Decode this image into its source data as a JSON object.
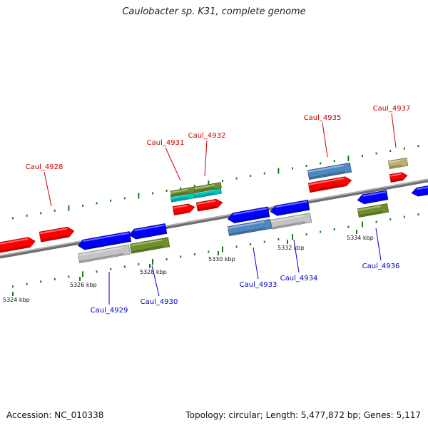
{
  "title": "Caulobacter sp. K31, complete genome",
  "footer": {
    "accession": "Accession: NC_010338",
    "summary": "Topology: circular; Length: 5,477,872 bp; Genes: 5,117"
  },
  "colors": {
    "backbone": "#8a8a8a",
    "forward_label": "#cc0000",
    "reverse_label": "#0000cc",
    "tick": "#1a7a1a",
    "cds_forward": "#ff0000",
    "cds_reverse": "#0000ff",
    "steelblue": "#4f87c0",
    "olive": "#6e8f2a",
    "cyan": "#00c8c8",
    "gray": "#c4c4c4",
    "khaki": "#c0b070"
  },
  "ticks": [
    "5324 kbp",
    "5326 kbp",
    "5328 kbp",
    "5330 kbp",
    "5332 kbp",
    "5334 kbp"
  ],
  "genes": [
    "Caul_4928",
    "Caul_4929",
    "Caul_4930",
    "Caul_4931",
    "Caul_4932",
    "Caul_4933",
    "Caul_4934",
    "Caul_4935",
    "Caul_4936",
    "Caul_4937"
  ]
}
